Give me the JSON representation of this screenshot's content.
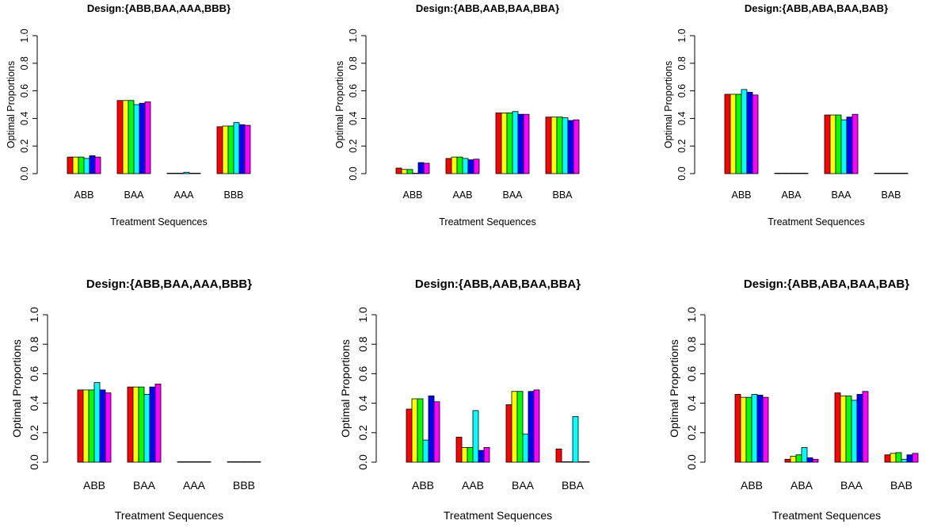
{
  "colors": [
    "#FF0000",
    "#FFFF00",
    "#00FF00",
    "#00FFFF",
    "#0000FF",
    "#FF00FF"
  ],
  "chart_data": [
    {
      "type": "bar",
      "title": "Design:{ABB,BAA,AAA,BBB}",
      "xlabel": "Treatment Sequences",
      "ylabel": "Optimal Proportions",
      "ylim": [
        0,
        1
      ],
      "yticks": [
        "0.0",
        "0.2",
        "0.4",
        "0.6",
        "0.8",
        "1.0"
      ],
      "categories": [
        "ABB",
        "BAA",
        "AAA",
        "BBB"
      ],
      "series": [
        {
          "values": [
            0.12,
            0.53,
            0.0,
            0.34
          ]
        },
        {
          "values": [
            0.12,
            0.53,
            0.0,
            0.345
          ]
        },
        {
          "values": [
            0.12,
            0.53,
            0.0,
            0.345
          ]
        },
        {
          "values": [
            0.11,
            0.5,
            0.01,
            0.37
          ]
        },
        {
          "values": [
            0.13,
            0.51,
            0.0,
            0.355
          ]
        },
        {
          "values": [
            0.12,
            0.52,
            0.0,
            0.35
          ]
        }
      ]
    },
    {
      "type": "bar",
      "title": "Design:{ABB,AAB,BAA,BBA}",
      "xlabel": "Treatment Sequences",
      "ylabel": "Optimal Proportions",
      "ylim": [
        0,
        1
      ],
      "yticks": [
        "0.0",
        "0.2",
        "0.4",
        "0.6",
        "0.8",
        "1.0"
      ],
      "categories": [
        "ABB",
        "AAB",
        "BAA",
        "BBA"
      ],
      "series": [
        {
          "values": [
            0.04,
            0.11,
            0.44,
            0.41
          ]
        },
        {
          "values": [
            0.03,
            0.12,
            0.44,
            0.41
          ]
        },
        {
          "values": [
            0.03,
            0.12,
            0.44,
            0.41
          ]
        },
        {
          "values": [
            0.0,
            0.11,
            0.45,
            0.405
          ]
        },
        {
          "values": [
            0.08,
            0.1,
            0.43,
            0.385
          ]
        },
        {
          "values": [
            0.075,
            0.105,
            0.43,
            0.39
          ]
        }
      ]
    },
    {
      "type": "bar",
      "title": "Design:{ABB,ABA,BAA,BAB}",
      "xlabel": "Treatment Sequences",
      "ylabel": "Optimal Proportions",
      "ylim": [
        0,
        1
      ],
      "yticks": [
        "0.0",
        "0.2",
        "0.4",
        "0.6",
        "0.8",
        "1.0"
      ],
      "categories": [
        "ABB",
        "ABA",
        "BAA",
        "BAB"
      ],
      "series": [
        {
          "values": [
            0.575,
            0.0,
            0.425,
            0.0
          ]
        },
        {
          "values": [
            0.575,
            0.0,
            0.425,
            0.0
          ]
        },
        {
          "values": [
            0.575,
            0.0,
            0.425,
            0.0
          ]
        },
        {
          "values": [
            0.61,
            0.0,
            0.39,
            0.0
          ]
        },
        {
          "values": [
            0.59,
            0.0,
            0.41,
            0.0
          ]
        },
        {
          "values": [
            0.57,
            0.0,
            0.43,
            0.0
          ]
        }
      ]
    },
    {
      "type": "bar",
      "title": "Design:{ABB,BAA,AAA,BBB}",
      "xlabel": "Treatment Sequences",
      "ylabel": "Optimal Proportions",
      "ylim": [
        0,
        1
      ],
      "yticks": [
        "0.0",
        "0.2",
        "0.4",
        "0.6",
        "0.8",
        "1.0"
      ],
      "categories": [
        "ABB",
        "BAA",
        "AAA",
        "BBB"
      ],
      "series": [
        {
          "values": [
            0.49,
            0.51,
            0.0,
            0.0
          ]
        },
        {
          "values": [
            0.49,
            0.51,
            0.0,
            0.0
          ]
        },
        {
          "values": [
            0.49,
            0.51,
            0.0,
            0.0
          ]
        },
        {
          "values": [
            0.54,
            0.46,
            0.0,
            0.0
          ]
        },
        {
          "values": [
            0.49,
            0.51,
            0.0,
            0.0
          ]
        },
        {
          "values": [
            0.47,
            0.53,
            0.0,
            0.0
          ]
        }
      ]
    },
    {
      "type": "bar",
      "title": "Design:{ABB,AAB,BAA,BBA}",
      "xlabel": "Treatment Sequences",
      "ylabel": "Optimal Proportions",
      "ylim": [
        0,
        1
      ],
      "yticks": [
        "0.0",
        "0.2",
        "0.4",
        "0.6",
        "0.8",
        "1.0"
      ],
      "categories": [
        "ABB",
        "AAB",
        "BAA",
        "BBA"
      ],
      "series": [
        {
          "values": [
            0.36,
            0.17,
            0.39,
            0.09
          ]
        },
        {
          "values": [
            0.43,
            0.1,
            0.48,
            0.0
          ]
        },
        {
          "values": [
            0.43,
            0.1,
            0.48,
            0.0
          ]
        },
        {
          "values": [
            0.15,
            0.35,
            0.19,
            0.31
          ]
        },
        {
          "values": [
            0.45,
            0.08,
            0.48,
            0.0
          ]
        },
        {
          "values": [
            0.41,
            0.1,
            0.49,
            0.0
          ]
        }
      ]
    },
    {
      "type": "bar",
      "title": "Design:{ABB,ABA,BAA,BAB}",
      "xlabel": "Treatment Sequences",
      "ylabel": "Optimal Proportions",
      "ylim": [
        0,
        1
      ],
      "yticks": [
        "0.0",
        "0.2",
        "0.4",
        "0.6",
        "0.8",
        "1.0"
      ],
      "categories": [
        "ABB",
        "ABA",
        "BAA",
        "BAB"
      ],
      "series": [
        {
          "values": [
            0.46,
            0.02,
            0.47,
            0.05
          ]
        },
        {
          "values": [
            0.44,
            0.04,
            0.45,
            0.06
          ]
        },
        {
          "values": [
            0.44,
            0.05,
            0.45,
            0.065
          ]
        },
        {
          "values": [
            0.46,
            0.1,
            0.42,
            0.02
          ]
        },
        {
          "values": [
            0.455,
            0.03,
            0.46,
            0.05
          ]
        },
        {
          "values": [
            0.44,
            0.02,
            0.48,
            0.06
          ]
        }
      ]
    }
  ]
}
